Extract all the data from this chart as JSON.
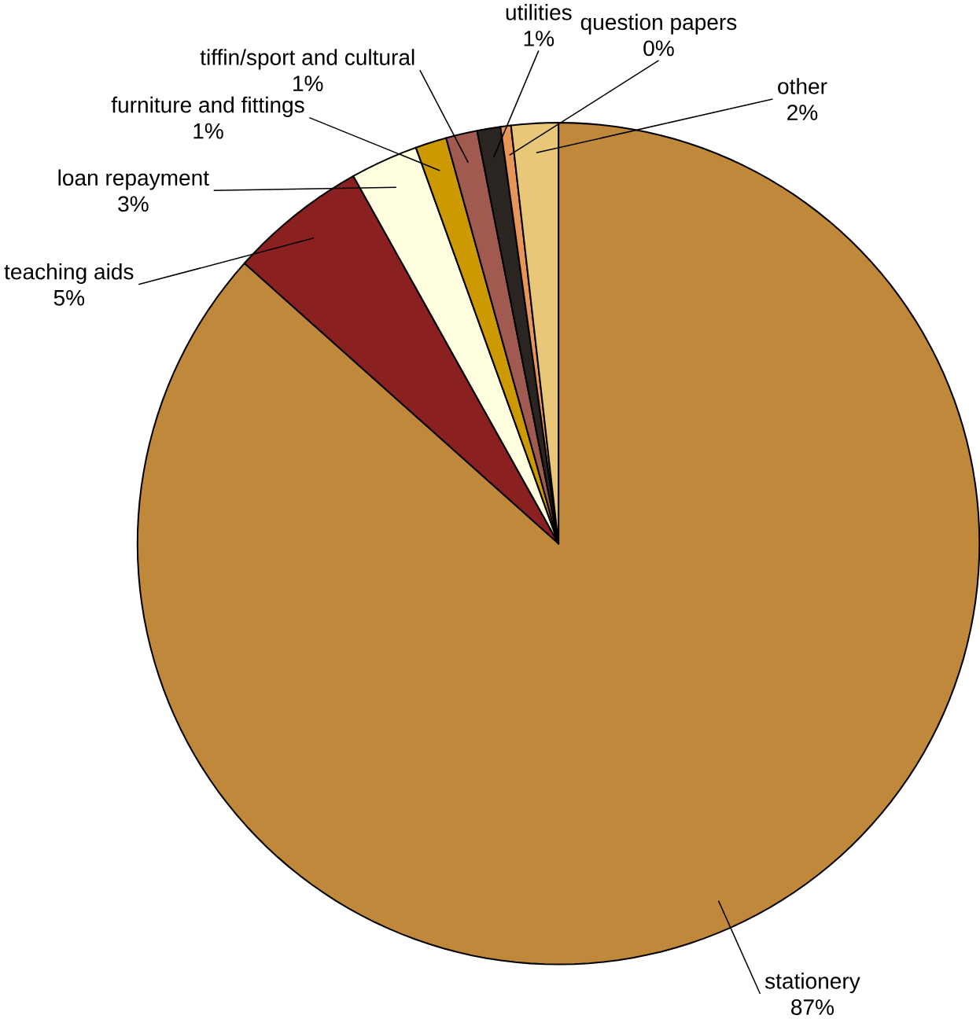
{
  "chart_data": {
    "type": "pie",
    "categories": [
      "stationery",
      "teaching aids",
      "loan repayment",
      "furniture and fittings",
      "tiffin/sport and cultural",
      "utilities",
      "question papers",
      "other"
    ],
    "values": [
      86.6,
      5.3,
      2.6,
      1.2,
      1.2,
      0.9,
      0.4,
      1.8
    ],
    "value_labels": [
      "87%",
      "5%",
      "3%",
      "1%",
      "1%",
      "1%",
      "0%",
      "2%"
    ],
    "colors": [
      "#c0883a",
      "#8b2020",
      "#ffffe0",
      "#cc9900",
      "#a05a50",
      "#2a2520",
      "#e8955a",
      "#e8c878"
    ]
  }
}
